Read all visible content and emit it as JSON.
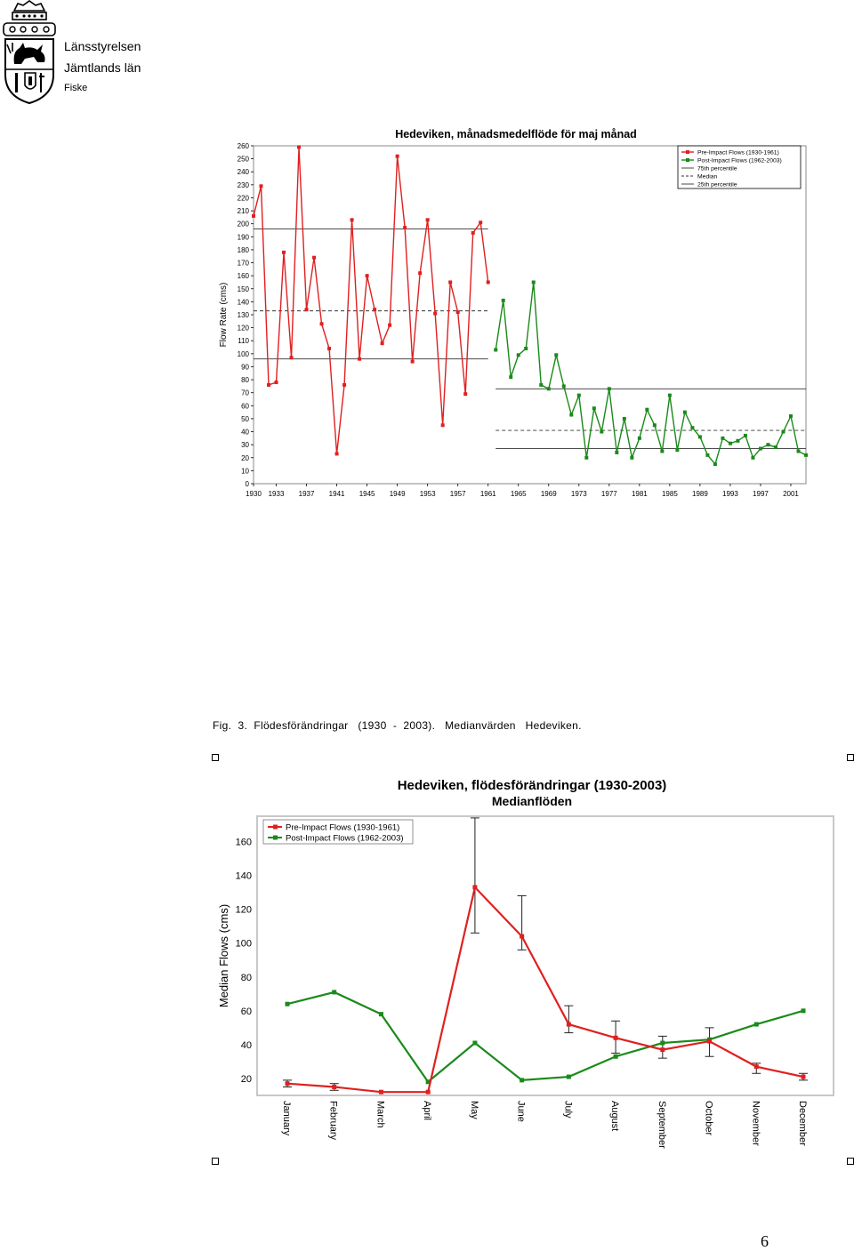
{
  "header": {
    "org_line1": "Länsstyrelsen",
    "org_line2": "Jämtlands  län",
    "org_line3": "Fiske"
  },
  "caption": "Fig.  3.  Flödesförändringar   (1930  -  2003).   Medianvärden   Hedeviken.",
  "page_number": "6",
  "colors": {
    "pre": "#e02020",
    "post": "#1a8a1a",
    "frame": "#c8c8c8"
  },
  "chart_data": [
    {
      "type": "line",
      "title": "Hedeviken, månadsmedelflöde för maj månad",
      "ylabel": "Flow Rate (cms)",
      "xlabel": "",
      "ylim": [
        0,
        260
      ],
      "yticks": [
        0,
        10,
        20,
        30,
        40,
        50,
        60,
        70,
        80,
        90,
        100,
        110,
        120,
        130,
        140,
        150,
        160,
        170,
        180,
        190,
        200,
        210,
        220,
        230,
        240,
        250,
        260
      ],
      "xlim": [
        1930,
        2003
      ],
      "xticks": [
        1930,
        1933,
        1937,
        1941,
        1945,
        1949,
        1953,
        1957,
        1961,
        1965,
        1969,
        1973,
        1977,
        1981,
        1985,
        1989,
        1993,
        1997,
        2001
      ],
      "legend_position": "top-right",
      "legend": [
        "Pre-Impact Flows (1930-1961)",
        "Post-Impact Flows (1962-2003)",
        "75th percentile",
        "Median",
        "25th percentile"
      ],
      "series": [
        {
          "name": "Pre-Impact Flows (1930-1961)",
          "x": [
            1930,
            1931,
            1932,
            1933,
            1934,
            1935,
            1936,
            1937,
            1938,
            1939,
            1940,
            1941,
            1942,
            1943,
            1944,
            1945,
            1946,
            1947,
            1948,
            1949,
            1950,
            1951,
            1952,
            1953,
            1954,
            1955,
            1956,
            1957,
            1958,
            1959,
            1960,
            1961
          ],
          "values": [
            206,
            229,
            76,
            78,
            178,
            97,
            259,
            134,
            174,
            123,
            104,
            23,
            76,
            203,
            96,
            160,
            134,
            108,
            122,
            252,
            197,
            94,
            162,
            203,
            131,
            45,
            155,
            132,
            69,
            193,
            201,
            155
          ]
        },
        {
          "name": "Post-Impact Flows (1962-2003)",
          "x": [
            1962,
            1963,
            1964,
            1965,
            1966,
            1967,
            1968,
            1969,
            1970,
            1971,
            1972,
            1973,
            1974,
            1975,
            1976,
            1977,
            1978,
            1979,
            1980,
            1981,
            1982,
            1983,
            1984,
            1985,
            1986,
            1987,
            1988,
            1989,
            1990,
            1991,
            1992,
            1993,
            1994,
            1995,
            1996,
            1997,
            1998,
            1999,
            2000,
            2001,
            2002,
            2003
          ],
          "values": [
            103,
            141,
            82,
            99,
            104,
            155,
            76,
            73,
            99,
            75,
            53,
            68,
            20,
            58,
            40,
            73,
            24,
            50,
            20,
            35,
            57,
            45,
            25,
            68,
            26,
            55,
            43,
            36,
            22,
            15,
            35,
            31,
            33,
            37,
            20,
            27,
            30,
            28,
            40,
            52,
            25,
            22
          ]
        }
      ],
      "reference_lines": [
        {
          "name": "75th percentile",
          "style": "solid",
          "pre": 196,
          "post": 73
        },
        {
          "name": "Median",
          "style": "dashed",
          "pre": 133,
          "post": 41
        },
        {
          "name": "25th percentile",
          "style": "solid",
          "pre": 96,
          "post": 27
        }
      ]
    },
    {
      "type": "line",
      "title": "Hedeviken, flödesförändringar (1930-2003)",
      "subtitle": "Medianflöden",
      "ylabel": "Median Flows (cms)",
      "xlabel": "",
      "ylim": [
        10,
        175
      ],
      "yticks": [
        20,
        40,
        60,
        80,
        100,
        120,
        140,
        160
      ],
      "categories": [
        "January",
        "February",
        "March",
        "April",
        "May",
        "June",
        "July",
        "August",
        "September",
        "October",
        "November",
        "December"
      ],
      "legend_position": "top-left",
      "series": [
        {
          "name": "Pre-Impact Flows (1930-1961)",
          "values": [
            17,
            15,
            12,
            12,
            133,
            104,
            52,
            44,
            37,
            42,
            27,
            21
          ],
          "error_low": [
            15,
            13,
            null,
            null,
            106,
            96,
            47,
            35,
            32,
            33,
            23,
            19
          ],
          "error_high": [
            19,
            17,
            null,
            null,
            174,
            128,
            63,
            54,
            45,
            50,
            29,
            23
          ]
        },
        {
          "name": "Post-Impact Flows (1962-2003)",
          "values": [
            64,
            71,
            58,
            18,
            41,
            19,
            21,
            33,
            41,
            43,
            52,
            60
          ]
        }
      ]
    }
  ]
}
